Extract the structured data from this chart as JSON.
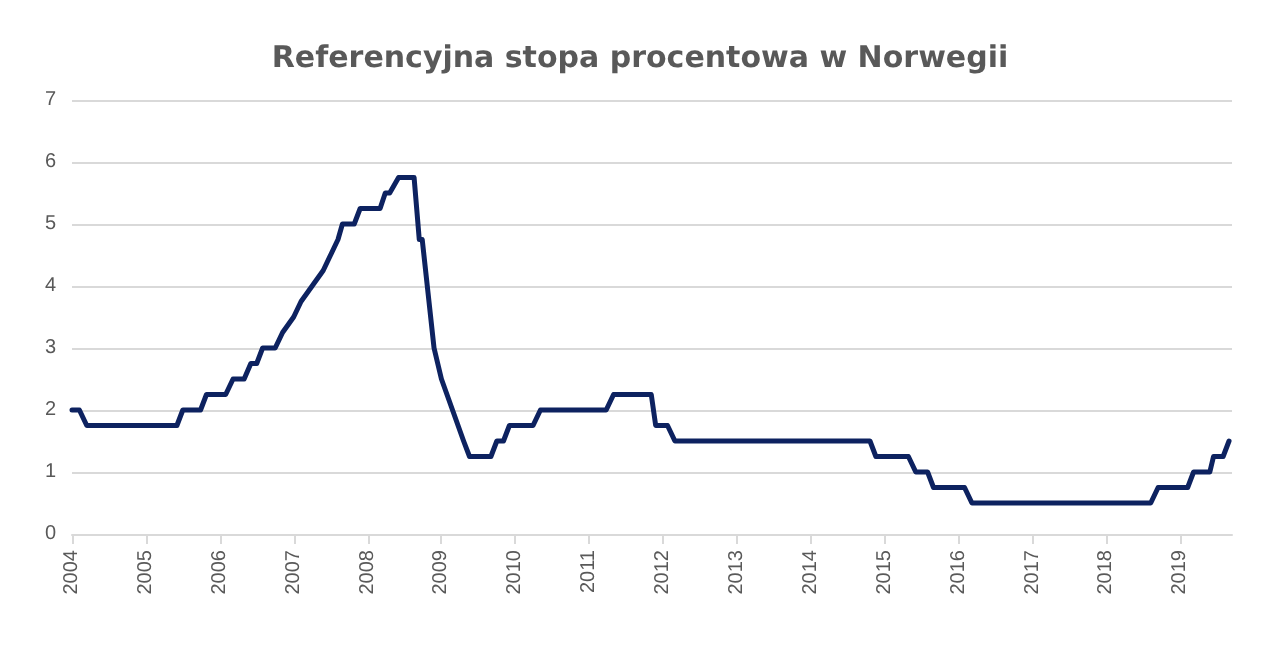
{
  "chart_data": {
    "type": "line",
    "title": "Referencyjna stopa procentowa w Norwegii",
    "x": [
      2004.0,
      2004.1,
      2004.2,
      2005.42,
      2005.5,
      2005.74,
      2005.82,
      2006.08,
      2006.18,
      2006.33,
      2006.42,
      2006.5,
      2006.58,
      2006.75,
      2006.85,
      2007.0,
      2007.1,
      2007.25,
      2007.4,
      2007.5,
      2007.6,
      2007.66,
      2007.82,
      2007.9,
      2008.1,
      2008.17,
      2008.24,
      2008.3,
      2008.42,
      2008.63,
      2008.7,
      2008.74,
      2008.9,
      2009.0,
      2009.15,
      2009.3,
      2009.38,
      2009.67,
      2009.75,
      2009.84,
      2009.92,
      2010.24,
      2010.34,
      2011.23,
      2011.33,
      2011.84,
      2011.9,
      2012.06,
      2012.16,
      2014.8,
      2014.88,
      2015.32,
      2015.42,
      2015.58,
      2015.66,
      2016.08,
      2016.18,
      2018.6,
      2018.7,
      2019.1,
      2019.18,
      2019.4,
      2019.45,
      2019.58,
      2019.66
    ],
    "series": [
      {
        "color": "#0d2260",
        "values": [
          2,
          2,
          1.75,
          1.75,
          2,
          2,
          2.25,
          2.25,
          2.5,
          2.5,
          2.75,
          2.75,
          3,
          3,
          3.25,
          3.5,
          3.75,
          4,
          4.25,
          4.5,
          4.75,
          5,
          5,
          5.25,
          5.25,
          5.25,
          5.5,
          5.5,
          5.75,
          5.75,
          4.75,
          4.75,
          3,
          2.5,
          2,
          1.5,
          1.25,
          1.25,
          1.5,
          1.5,
          1.75,
          1.75,
          2,
          2,
          2.25,
          2.25,
          1.75,
          1.75,
          1.5,
          1.5,
          1.25,
          1.25,
          1,
          1,
          0.75,
          0.75,
          0.5,
          0.5,
          0.75,
          0.75,
          1,
          1,
          1.25,
          1.25,
          1.5
        ]
      }
    ],
    "xlim": [
      2004,
      2019.7
    ],
    "xticks": [
      2004,
      2005,
      2006,
      2007,
      2008,
      2009,
      2010,
      2011,
      2012,
      2013,
      2014,
      2015,
      2016,
      2017,
      2018,
      2019
    ],
    "ylim": [
      0,
      7
    ],
    "yticks": [
      0,
      1,
      2,
      3,
      4,
      5,
      6,
      7
    ],
    "grid": "y",
    "marker": "none",
    "line_style": "solid"
  }
}
